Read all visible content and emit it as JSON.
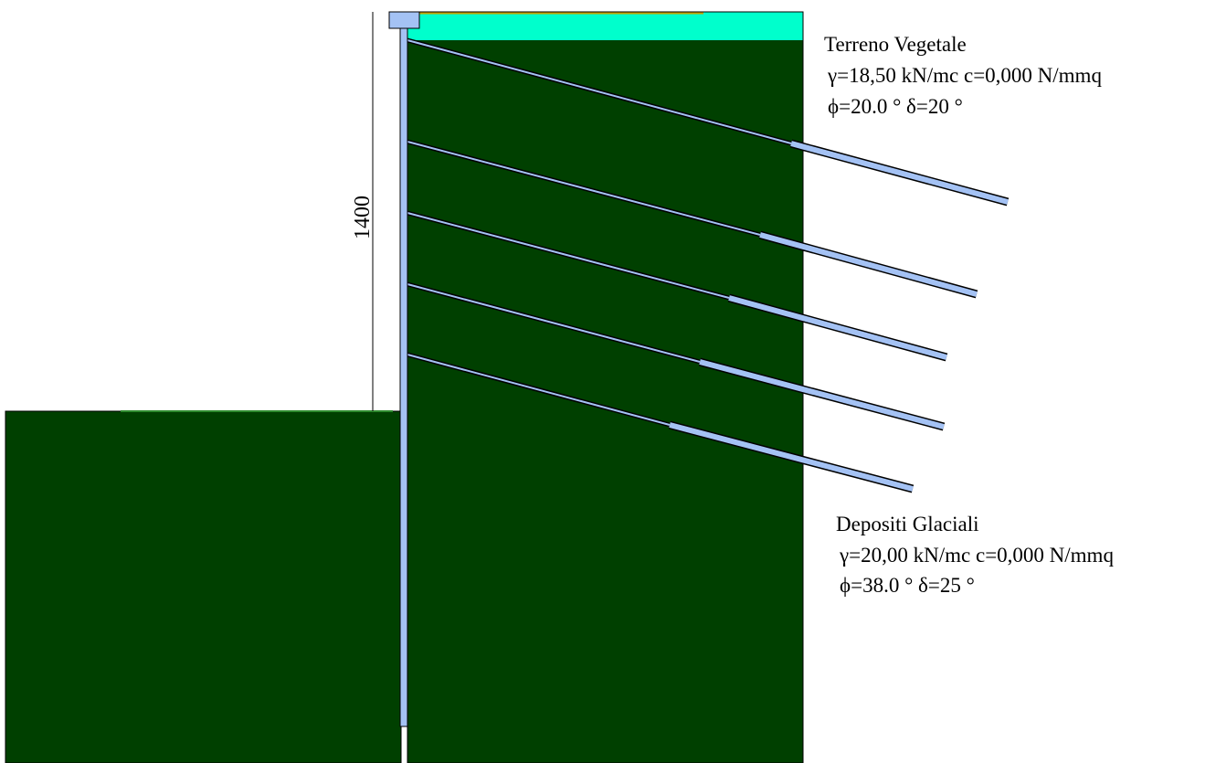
{
  "dimension": {
    "height_label": "1400"
  },
  "layers": [
    {
      "name": "Terreno Vegetale",
      "line1": "γ=18,50 kN/mc c=0,000 N/mmq",
      "line2": "ϕ=20.0 °  δ=20 °",
      "color": "#00ffcc"
    },
    {
      "name": "Depositi Glaciali",
      "line1": "γ=20,00 kN/mc c=0,000 N/mmq",
      "line2": "ϕ=38.0 °  δ=25 °",
      "color": "#004000"
    }
  ],
  "colors": {
    "wall": "#a4c2f4",
    "anchor": "#a4c2f4",
    "outline": "#000000",
    "vegetation_top": "#c8a000"
  },
  "anchors_count": 5
}
